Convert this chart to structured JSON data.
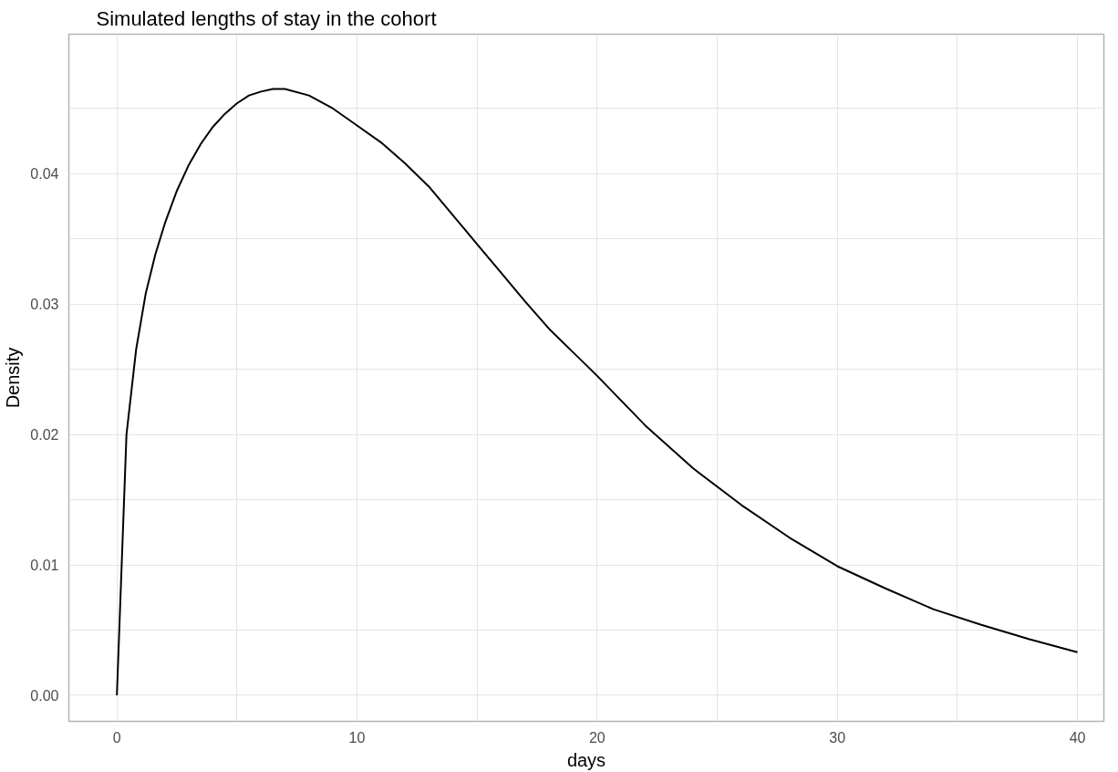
{
  "chart_data": {
    "type": "line",
    "title": "Simulated lengths of stay in the cohort",
    "xlabel": "days",
    "ylabel": "Density",
    "x": [
      0,
      0.4,
      0.8,
      1.2,
      1.6,
      2,
      2.5,
      3,
      3.5,
      4,
      4.5,
      5,
      5.5,
      6,
      6.5,
      7,
      8,
      9,
      10,
      11,
      12,
      13,
      14,
      15,
      16,
      17,
      18,
      19,
      20,
      22,
      24,
      26,
      28,
      30,
      32,
      34,
      36,
      38,
      40
    ],
    "series": [
      {
        "color": "#000000",
        "values": [
          0,
          0.02,
          0.0265,
          0.0308,
          0.0338,
          0.0362,
          0.0387,
          0.0407,
          0.0423,
          0.0436,
          0.0446,
          0.0454,
          0.046,
          0.0463,
          0.0465,
          0.0465,
          0.046,
          0.045,
          0.0437,
          0.0424,
          0.0408,
          0.039,
          0.0368,
          0.0346,
          0.0324,
          0.0302,
          0.0281,
          0.0263,
          0.0245,
          0.0207,
          0.0174,
          0.0146,
          0.0121,
          0.0099,
          0.0082,
          0.0066,
          0.0054,
          0.0043,
          0.0033
        ]
      }
    ],
    "xlim": [
      -2,
      41.1
    ],
    "ylim": [
      -0.002,
      0.0507
    ],
    "xticks": [
      0,
      {
        "value": 5,
        "label": null
      },
      10,
      {
        "value": 15,
        "label": null
      },
      20,
      {
        "value": 25,
        "label": null
      },
      30,
      {
        "value": 35,
        "label": null
      },
      40
    ],
    "yticks": [
      {
        "value": 0,
        "label": "0.00"
      },
      {
        "value": 0.005,
        "label": null
      },
      0.01,
      {
        "value": 0.015,
        "label": null
      },
      0.02,
      {
        "value": 0.025,
        "label": null
      },
      0.03,
      {
        "value": 0.035,
        "label": null
      },
      0.04,
      {
        "value": 0.045,
        "label": null
      }
    ],
    "grid": true,
    "line_style": "solid",
    "marker": "none"
  }
}
